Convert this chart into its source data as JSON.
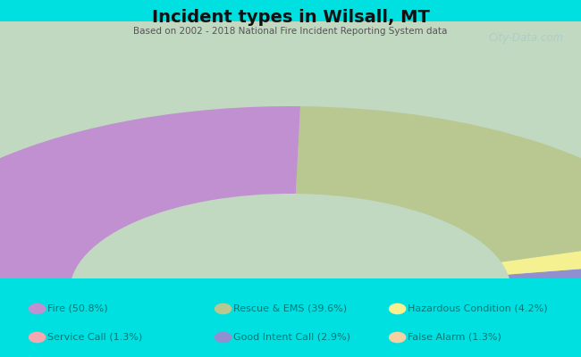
{
  "title": "Incident types in Wilsall, MT",
  "subtitle": "Based on 2002 - 2018 National Fire Incident Reporting System data",
  "background_color": "#00e0e0",
  "chart_bg_color": "#dff0e0",
  "order": [
    "False Alarm",
    "Service Call",
    "Good Intent Call",
    "Hazardous Condition",
    "Rescue & EMS",
    "Fire"
  ],
  "order_vals": [
    1.3,
    1.3,
    2.9,
    4.2,
    39.6,
    50.8
  ],
  "order_colors": [
    "#f5d0a0",
    "#f5a8b0",
    "#9090d0",
    "#f5f090",
    "#b8c890",
    "#c090d0"
  ],
  "watermark": "City-Data.com",
  "legend_row1": [
    [
      "Fire (50.8%)",
      "#c090d0"
    ],
    [
      "Rescue & EMS (39.6%)",
      "#b8c890"
    ],
    [
      "Hazardous Condition (4.2%)",
      "#f5f090"
    ]
  ],
  "legend_row2": [
    [
      "Service Call (1.3%)",
      "#f5a8b0"
    ],
    [
      "Good Intent Call (2.9%)",
      "#9090d0"
    ],
    [
      "False Alarm (1.3%)",
      "#f5d0a0"
    ]
  ]
}
